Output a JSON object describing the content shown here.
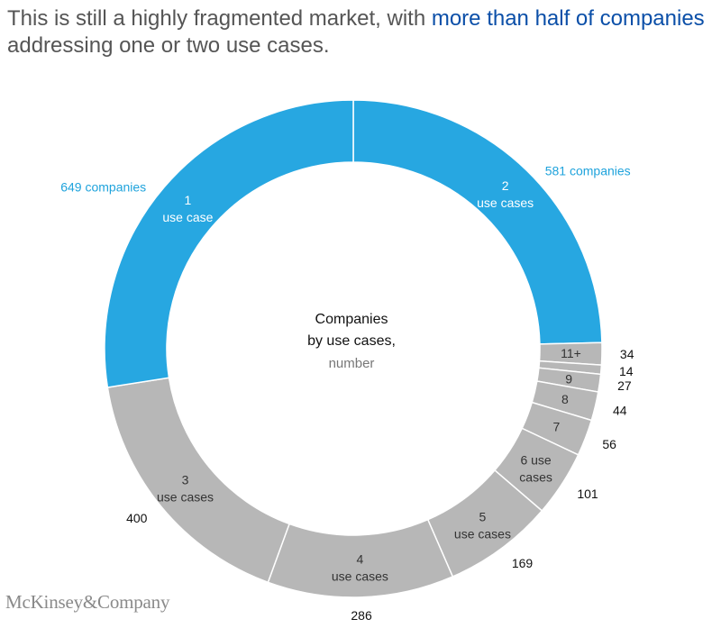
{
  "headline": {
    "part1": "This is still a highly fragmented market, with ",
    "highlight": "more than half of companies",
    "part2": "addressing one or two use cases."
  },
  "colors": {
    "blue": "#27a7e1",
    "gray": "#b7b7b7",
    "highlight_text": "#0b4fa8",
    "blue_label": "#1fa3dc"
  },
  "chart_data": {
    "type": "pie",
    "style": "donut",
    "center_label": {
      "line1": "Companies",
      "line2": "by use cases,",
      "line3": "number"
    },
    "slices": [
      {
        "key": "2",
        "label_line1": "2",
        "label_line2": "use cases",
        "value": 581,
        "value_label": "581 companies",
        "highlight": true
      },
      {
        "key": "11+",
        "label_line1": "11+",
        "label_line2": "",
        "value": 34,
        "value_label": "34",
        "highlight": false
      },
      {
        "key": "10",
        "label_line1": "",
        "label_line2": "",
        "value": 14,
        "value_label": "14",
        "highlight": false
      },
      {
        "key": "9",
        "label_line1": "9",
        "label_line2": "",
        "value": 27,
        "value_label": "27",
        "highlight": false
      },
      {
        "key": "8",
        "label_line1": "8",
        "label_line2": "",
        "value": 44,
        "value_label": "44",
        "highlight": false
      },
      {
        "key": "7",
        "label_line1": "7",
        "label_line2": "",
        "value": 56,
        "value_label": "56",
        "highlight": false
      },
      {
        "key": "6",
        "label_line1": "6 use",
        "label_line2": "cases",
        "value": 101,
        "value_label": "101",
        "highlight": false
      },
      {
        "key": "5",
        "label_line1": "5",
        "label_line2": "use cases",
        "value": 169,
        "value_label": "169",
        "highlight": false
      },
      {
        "key": "4",
        "label_line1": "4",
        "label_line2": "use cases",
        "value": 286,
        "value_label": "286",
        "highlight": false
      },
      {
        "key": "3",
        "label_line1": "3",
        "label_line2": "use cases",
        "value": 400,
        "value_label": "400",
        "highlight": false
      },
      {
        "key": "1",
        "label_line1": "1",
        "label_line2": "use case",
        "value": 649,
        "value_label": "649 companies",
        "highlight": true
      }
    ]
  },
  "footer": {
    "logo": "McKinsey&Company"
  }
}
